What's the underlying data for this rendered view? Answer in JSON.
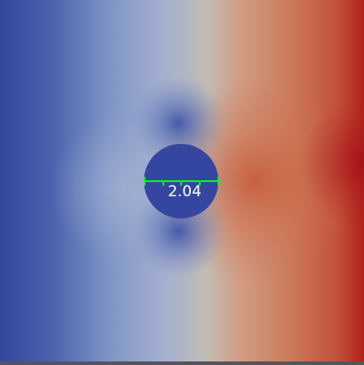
{
  "viewer": {
    "ruler": {
      "label": "2.04",
      "color": "#00ff1a"
    },
    "colormap": {
      "low": "#3a4ea0",
      "mid": "#c0c0c4",
      "high": "#b4281e",
      "obstacle": "#3546a0"
    }
  }
}
